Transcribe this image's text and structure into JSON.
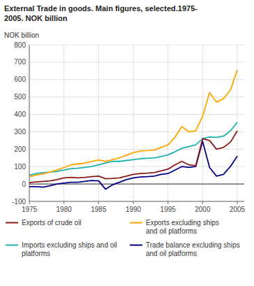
{
  "chart_data": {
    "type": "line",
    "title": "External Trade in goods. Main figures, selected.1975-\n2005. NOK billion",
    "y_label": "NOK billion",
    "x": [
      1975,
      1976,
      1977,
      1978,
      1979,
      1980,
      1981,
      1982,
      1983,
      1984,
      1985,
      1986,
      1987,
      1988,
      1989,
      1990,
      1991,
      1992,
      1993,
      1994,
      1995,
      1996,
      1997,
      1998,
      1999,
      2000,
      2001,
      2002,
      2003,
      2004,
      2005
    ],
    "series": [
      {
        "name": "Exports of crude oil",
        "color": "#8B1A1A",
        "values": [
          8,
          12,
          15,
          18,
          25,
          35,
          38,
          35,
          38,
          42,
          45,
          30,
          32,
          35,
          45,
          55,
          60,
          62,
          65,
          75,
          85,
          110,
          130,
          110,
          105,
          260,
          250,
          200,
          210,
          240,
          305
        ]
      },
      {
        "name": "Exports excluding ships\nand oil platforms",
        "color": "#FFA500",
        "values": [
          42,
          52,
          58,
          68,
          80,
          95,
          110,
          115,
          120,
          130,
          138,
          130,
          140,
          150,
          165,
          180,
          190,
          192,
          195,
          210,
          225,
          268,
          330,
          300,
          305,
          390,
          525,
          470,
          490,
          540,
          655
        ]
      },
      {
        "name": "Imports excluding ships and oil\nplatforms",
        "color": "#20B2AA",
        "values": [
          50,
          60,
          65,
          68,
          72,
          80,
          88,
          90,
          95,
          100,
          110,
          120,
          130,
          130,
          135,
          140,
          145,
          148,
          150,
          158,
          168,
          185,
          205,
          215,
          225,
          260,
          270,
          268,
          275,
          305,
          355
        ]
      },
      {
        "name": "Trade balance excluding ships\nand oil platforms",
        "color": "#00008B",
        "values": [
          -15,
          -15,
          -18,
          -10,
          0,
          5,
          10,
          10,
          15,
          20,
          18,
          -30,
          -5,
          10,
          25,
          35,
          40,
          42,
          45,
          55,
          60,
          80,
          100,
          95,
          100,
          245,
          95,
          45,
          55,
          100,
          160
        ]
      }
    ],
    "xlim": [
      1975,
      2006
    ],
    "xticks": [
      1975,
      1980,
      1985,
      1990,
      1995,
      2000,
      2005
    ],
    "ylim": [
      -100,
      800
    ],
    "yticks": [
      -100,
      0,
      100,
      200,
      300,
      400,
      500,
      600,
      700,
      800
    ],
    "grid": true,
    "legend": "bottom"
  }
}
